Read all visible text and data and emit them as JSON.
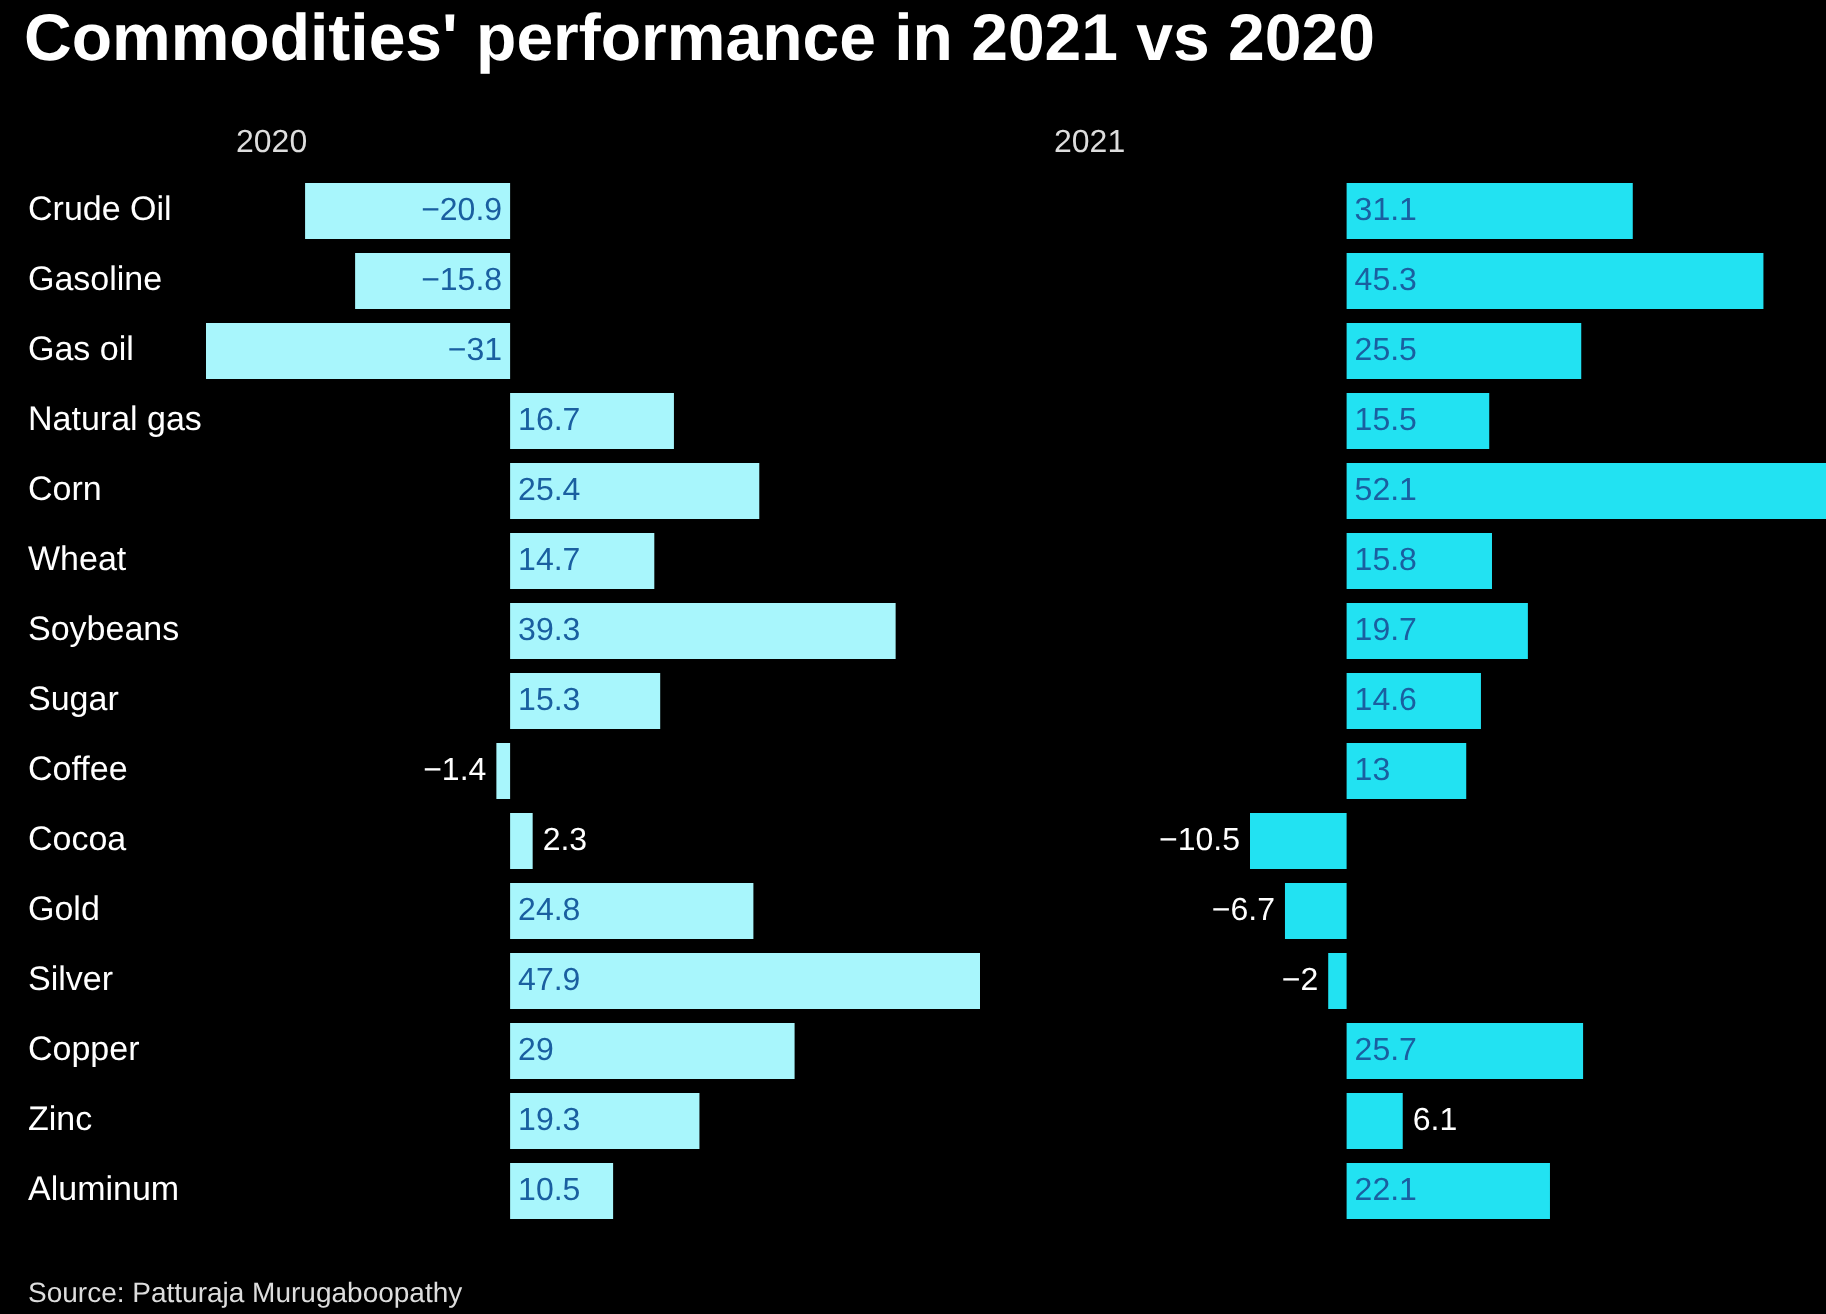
{
  "chart_data": [
    {
      "type": "bar",
      "orientation": "horizontal",
      "title": "Commodities' performance in 2021 vs 2020",
      "subtitle": "2020",
      "categories": [
        "Crude Oil",
        "Gasoline",
        "Gas oil",
        "Natural gas",
        "Corn",
        "Wheat",
        "Soybeans",
        "Sugar",
        "Coffee",
        "Cocoa",
        "Gold",
        "Silver",
        "Copper",
        "Zinc",
        "Aluminum"
      ],
      "values": [
        -20.9,
        -15.8,
        -31,
        16.7,
        25.4,
        14.7,
        39.3,
        15.3,
        -1.4,
        2.3,
        24.8,
        47.9,
        29,
        19.3,
        10.5
      ],
      "color": "#a8f6fc",
      "data_labels": true,
      "legend": false,
      "tick_labels": "y",
      "annotations": [
        "Source: Patturaja Murugaboopathy"
      ]
    },
    {
      "type": "bar",
      "orientation": "horizontal",
      "subtitle": "2021",
      "categories": [
        null,
        null,
        null,
        null,
        null,
        null,
        null,
        null,
        null,
        null,
        null,
        null,
        null,
        null,
        null
      ],
      "values": [
        31.1,
        45.3,
        25.5,
        15.5,
        52.1,
        15.8,
        19.7,
        14.6,
        13,
        -10.5,
        -6.7,
        -2,
        25.7,
        6.1,
        22.1
      ],
      "color": "#22e2f2",
      "data_labels": true,
      "legend": false,
      "tick_labels": false
    }
  ]
}
